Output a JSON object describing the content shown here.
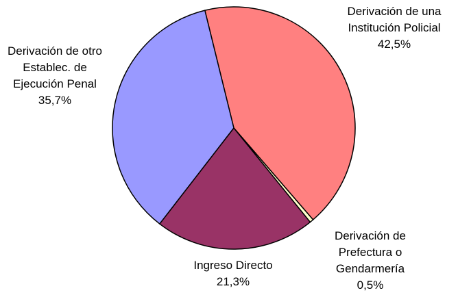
{
  "chart_data": {
    "type": "pie",
    "categories": [
      "Derivación de una Institución Policial",
      "Derivación de Prefectura o Gendarmería",
      "Ingreso Directo",
      "Derivación de otro Establec. de Ejecución Penal"
    ],
    "values": [
      42.5,
      0.5,
      21.3,
      35.7
    ],
    "value_labels": [
      "42,5%",
      "0,5%",
      "21,3%",
      "35,7%"
    ],
    "colors": [
      "#ff8080",
      "#ffffcc",
      "#993366",
      "#9999ff"
    ]
  }
}
